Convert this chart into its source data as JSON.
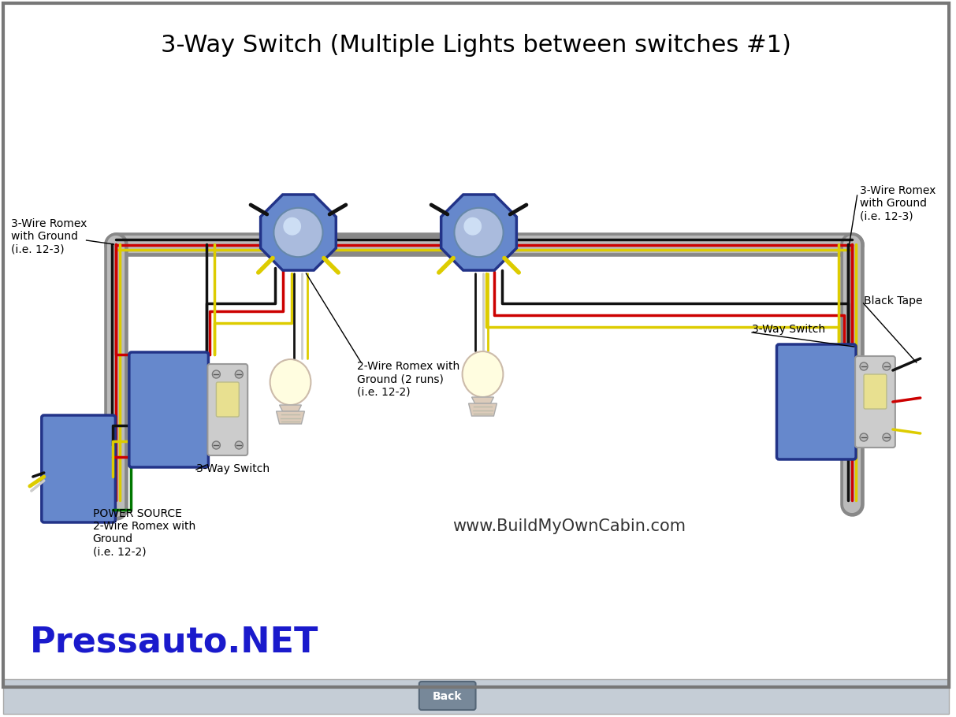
{
  "title": "3-Way Switch (Multiple Lights between switches #1)",
  "title_fontsize": 22,
  "bg_color": "#ffffff",
  "pressauto_text": "Pressauto.NET",
  "pressauto_color": "#1a1acc",
  "pressauto_fontsize": 32,
  "website_text": "www.BuildMyOwnCabin.com",
  "website_fontsize": 15,
  "back_button_text": "Back",
  "bottom_bar_color": "#c5cdd6",
  "small_fontsize": 10,
  "wire_black": "#111111",
  "wire_red": "#cc0000",
  "wire_yellow": "#ddcc00",
  "wire_white": "#cccccc",
  "wire_green": "#007700",
  "conduit_dark": "#888888",
  "conduit_light": "#bbbbbb",
  "box_fill": "#6688cc",
  "box_edge": "#223388",
  "oct_glass": "#aabbdd",
  "oct_glass_edge": "#6688aa",
  "bulb_color": "#fffde0",
  "bulb_edge": "#ccbbaa",
  "base_color": "#ddccbb",
  "switch_plate": "#cccccc",
  "switch_toggle": "#e8e090",
  "border_color": "#777777"
}
